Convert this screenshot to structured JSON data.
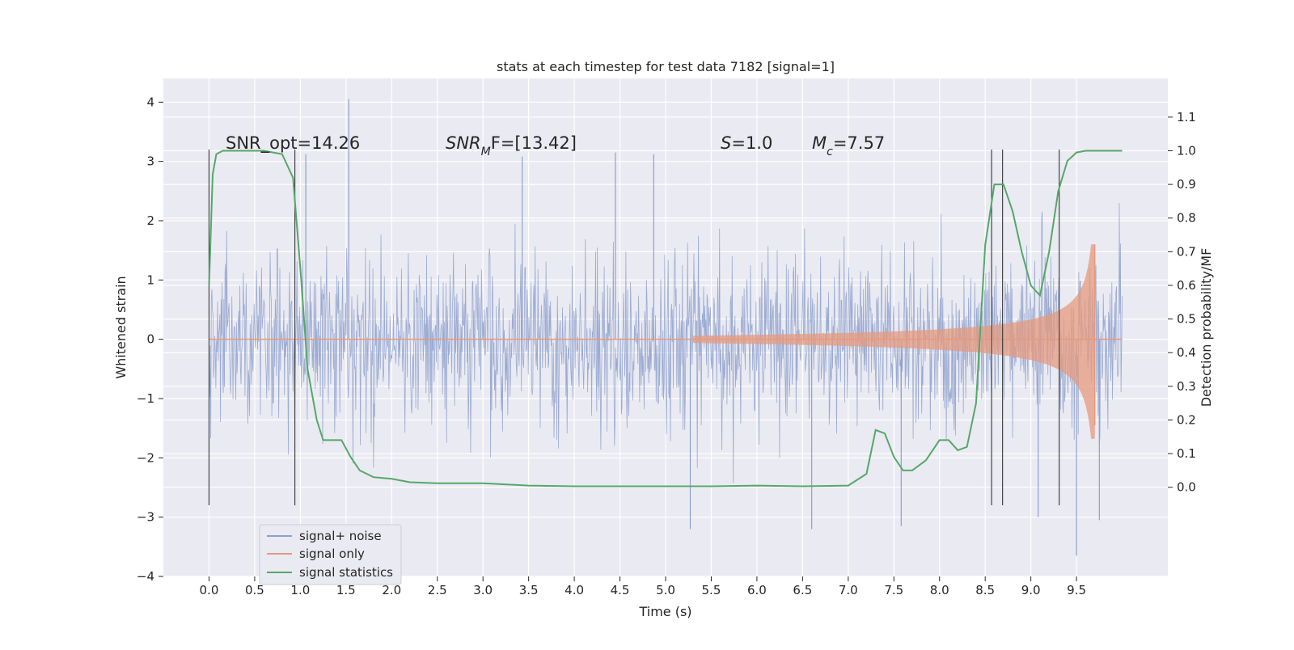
{
  "chart_data": {
    "type": "line",
    "title": "stats at each timestep for test data 7182 [signal=1]",
    "xlabel": "Time (s)",
    "ylabel_left": "Whitened strain",
    "ylabel_right": "Detection probability/MF",
    "xlim": [
      -0.5,
      10.5
    ],
    "ylim_left": [
      -4.0,
      4.4
    ],
    "ylim_right": [
      -0.265,
      1.215
    ],
    "x_ticks": [
      "0.0",
      "0.5",
      "1.0",
      "1.5",
      "2.0",
      "2.5",
      "3.0",
      "3.5",
      "4.0",
      "4.5",
      "5.0",
      "5.5",
      "6.0",
      "6.5",
      "7.0",
      "7.5",
      "8.0",
      "8.5",
      "9.0",
      "9.5"
    ],
    "y_ticks_left": [
      "4",
      "3",
      "2",
      "1",
      "0",
      "−1",
      "−2",
      "−3",
      "−4"
    ],
    "y_ticks_right": [
      "1.1",
      "1.0",
      "0.9",
      "0.8",
      "0.7",
      "0.6",
      "0.5",
      "0.4",
      "0.3",
      "0.2",
      "0.1",
      "0.0"
    ],
    "grid": true,
    "legend_position": "lower-left",
    "annotations": [
      {
        "text": "SNR_opt=14.26",
        "x": 0.2,
        "y": 3.3
      },
      {
        "text": "SNR_MF=[13.42]",
        "x": 2.6,
        "y": 3.3
      },
      {
        "text": "S=1.0",
        "x": 5.6,
        "y": 3.3
      },
      {
        "text": "M_c=7.57",
        "x": 6.6,
        "y": 3.3
      }
    ],
    "vertical_lines": {
      "x": [
        0.0,
        0.94,
        8.57,
        8.69,
        9.31
      ],
      "y_from": -2.8,
      "y_to": 3.2
    },
    "series": [
      {
        "name": "signal+ noise",
        "color": "#8da0cb",
        "description_values": {
          "x_range": [
            0.0,
            10.0
          ],
          "typical_abs_amplitude": 1.4,
          "peak_values": [
            4.05,
            -3.65
          ]
        },
        "peaks": [
          {
            "x": 1.53,
            "y": 4.05
          },
          {
            "x": 9.5,
            "y": -3.65
          },
          {
            "x": 1.06,
            "y": 3.12
          },
          {
            "x": 4.87,
            "y": 3.12
          },
          {
            "x": 4.45,
            "y": 3.15
          },
          {
            "x": 3.43,
            "y": 3.08
          },
          {
            "x": 5.27,
            "y": -3.2
          },
          {
            "x": 6.6,
            "y": -3.2
          },
          {
            "x": 7.58,
            "y": -3.15
          },
          {
            "x": 9.08,
            "y": -3.0
          },
          {
            "x": 9.75,
            "y": -3.05
          }
        ]
      },
      {
        "name": "signal only",
        "color": "#e59a7e",
        "chirp_start_x": 5.3,
        "chirp_end_x": 9.7,
        "peak_amplitude": 1.6
      },
      {
        "name": "signal statistics",
        "color": "#55a868",
        "x": [
          0.0,
          0.04,
          0.08,
          0.15,
          0.25,
          0.4,
          0.6,
          0.8,
          0.92,
          1.0,
          1.08,
          1.18,
          1.25,
          1.35,
          1.45,
          1.55,
          1.65,
          1.8,
          2.0,
          2.2,
          2.5,
          3.0,
          3.5,
          4.0,
          4.5,
          5.0,
          5.5,
          6.0,
          6.5,
          6.8,
          7.0,
          7.2,
          7.3,
          7.4,
          7.5,
          7.6,
          7.7,
          7.85,
          8.0,
          8.1,
          8.2,
          8.3,
          8.4,
          8.5,
          8.6,
          8.7,
          8.8,
          8.9,
          9.0,
          9.1,
          9.2,
          9.3,
          9.4,
          9.5,
          9.6,
          9.7,
          9.9,
          10.0
        ],
        "values": [
          0.6,
          0.93,
          0.99,
          1.0,
          1.0,
          1.0,
          1.0,
          0.99,
          0.92,
          0.65,
          0.35,
          0.2,
          0.14,
          0.14,
          0.14,
          0.09,
          0.05,
          0.03,
          0.025,
          0.015,
          0.012,
          0.012,
          0.005,
          0.003,
          0.003,
          0.003,
          0.003,
          0.005,
          0.003,
          0.004,
          0.005,
          0.04,
          0.17,
          0.16,
          0.09,
          0.05,
          0.05,
          0.08,
          0.14,
          0.14,
          0.11,
          0.12,
          0.25,
          0.72,
          0.9,
          0.9,
          0.82,
          0.7,
          0.6,
          0.57,
          0.7,
          0.88,
          0.97,
          0.995,
          1.0,
          1.0,
          1.0,
          1.0
        ]
      }
    ],
    "legend": [
      "signal+ noise",
      "signal only",
      "signal statistics"
    ]
  }
}
